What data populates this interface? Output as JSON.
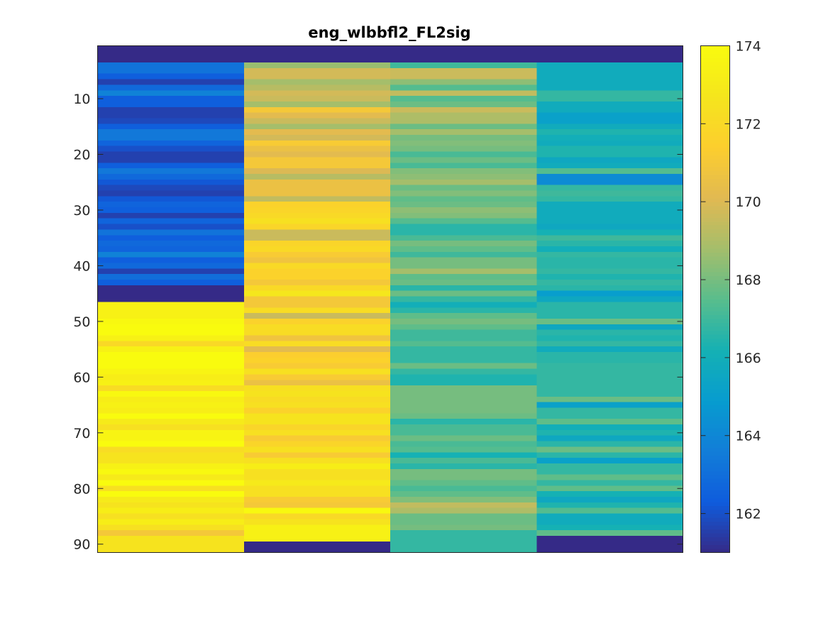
{
  "chart_data": {
    "type": "heatmap",
    "title": "eng_wlbbfl2_FL2sig",
    "xlabel": "",
    "ylabel": "",
    "colormap": "parula",
    "clim": [
      161,
      174
    ],
    "colorbar": {
      "position": "right",
      "ticks": [
        162,
        164,
        166,
        168,
        170,
        172,
        174
      ],
      "tick_labels": [
        "162",
        "164",
        "166",
        "168",
        "170",
        "172",
        "174"
      ]
    },
    "y_axis": {
      "range": [
        0.5,
        91.5
      ],
      "direction": "reverse",
      "ticks": [
        10,
        20,
        30,
        40,
        50,
        60,
        70,
        80,
        90
      ],
      "tick_labels": [
        "10",
        "20",
        "30",
        "40",
        "50",
        "60",
        "70",
        "80",
        "90"
      ]
    },
    "x_axis": {
      "columns": 4,
      "ticks": []
    },
    "rows": 91,
    "columns": [
      [
        161.0,
        161.0,
        161.0,
        163.2,
        163.2,
        162.4,
        161.6,
        162.8,
        163.8,
        162.4,
        162.4,
        161.6,
        161.6,
        161.8,
        162.4,
        163.4,
        163.4,
        162.6,
        162.0,
        161.6,
        161.6,
        162.4,
        163.4,
        162.8,
        162.2,
        161.8,
        161.6,
        162.2,
        162.6,
        162.4,
        161.6,
        162.6,
        162.0,
        163.2,
        162.4,
        162.8,
        162.6,
        163.8,
        162.4,
        162.8,
        161.6,
        163.0,
        162.4,
        161.0,
        161.0,
        161.0,
        173.4,
        173.4,
        173.4,
        173.8,
        174.0,
        174.0,
        173.4,
        172.0,
        173.4,
        174.0,
        174.0,
        174.0,
        173.6,
        173.2,
        173.4,
        172.2,
        173.8,
        173.2,
        173.4,
        173.2,
        174.0,
        173.0,
        172.4,
        173.6,
        173.6,
        174.0,
        172.2,
        172.6,
        172.6,
        173.4,
        173.8,
        173.0,
        174.0,
        172.4,
        174.0,
        173.0,
        172.6,
        173.2,
        172.4,
        173.2,
        172.4,
        171.0,
        172.6,
        172.6,
        172.6
      ],
      [
        161.0,
        161.0,
        161.0,
        168.6,
        169.8,
        169.8,
        168.8,
        169.2,
        169.8,
        169.6,
        168.8,
        171.0,
        170.2,
        169.6,
        168.8,
        170.2,
        169.8,
        171.2,
        170.6,
        170.2,
        171.0,
        171.0,
        170.0,
        169.2,
        170.6,
        170.6,
        170.6,
        169.4,
        171.6,
        171.8,
        172.0,
        172.4,
        171.8,
        169.6,
        169.6,
        171.8,
        172.0,
        171.2,
        170.8,
        172.0,
        171.6,
        171.6,
        171.0,
        172.0,
        172.8,
        171.0,
        171.0,
        172.2,
        169.6,
        171.6,
        172.2,
        172.2,
        170.8,
        172.2,
        170.2,
        171.4,
        171.6,
        171.2,
        172.4,
        171.2,
        170.6,
        172.4,
        172.6,
        172.2,
        172.4,
        171.6,
        172.6,
        172.6,
        171.8,
        172.4,
        171.2,
        171.8,
        172.4,
        171.2,
        172.4,
        173.2,
        172.4,
        172.4,
        173.0,
        172.4,
        172.4,
        171.2,
        171.0,
        173.8,
        172.0,
        172.6,
        173.4,
        173.4,
        173.4,
        161.0,
        161.0
      ],
      [
        161.0,
        161.0,
        161.0,
        167.0,
        169.6,
        169.6,
        168.4,
        167.4,
        169.4,
        167.4,
        167.8,
        169.6,
        169.0,
        169.0,
        167.8,
        168.8,
        168.0,
        168.2,
        168.0,
        167.2,
        167.8,
        167.2,
        168.2,
        168.4,
        168.8,
        167.8,
        168.2,
        167.6,
        167.8,
        168.4,
        168.2,
        167.4,
        166.6,
        166.6,
        167.2,
        168.0,
        167.6,
        167.0,
        168.0,
        168.0,
        168.8,
        167.6,
        167.8,
        166.6,
        167.8,
        166.8,
        166.0,
        166.6,
        167.6,
        168.0,
        167.6,
        167.0,
        167.0,
        167.4,
        166.8,
        166.8,
        166.8,
        167.8,
        166.8,
        166.4,
        166.4,
        168.0,
        168.0,
        168.0,
        168.0,
        168.0,
        167.8,
        166.6,
        167.2,
        167.2,
        167.8,
        167.2,
        167.4,
        166.2,
        167.2,
        166.6,
        168.0,
        168.0,
        167.6,
        167.2,
        167.6,
        168.2,
        169.4,
        169.0,
        167.8,
        167.8,
        168.0,
        166.8,
        166.8,
        166.8,
        166.8
      ],
      [
        161.0,
        161.0,
        161.0,
        165.8,
        165.8,
        165.8,
        165.8,
        165.8,
        166.8,
        166.8,
        165.8,
        165.8,
        165.2,
        165.2,
        165.8,
        166.4,
        166.0,
        165.8,
        166.4,
        166.4,
        165.6,
        165.8,
        167.4,
        164.2,
        164.2,
        166.8,
        167.0,
        166.8,
        165.8,
        165.8,
        165.8,
        165.8,
        165.6,
        166.2,
        167.0,
        166.6,
        166.0,
        166.8,
        166.6,
        166.6,
        166.8,
        166.4,
        166.8,
        166.6,
        165.0,
        165.6,
        166.6,
        166.6,
        166.6,
        167.8,
        165.6,
        166.6,
        166.4,
        166.8,
        165.8,
        166.6,
        166.6,
        166.8,
        166.8,
        166.8,
        166.8,
        166.8,
        166.8,
        167.8,
        165.2,
        166.8,
        166.8,
        167.6,
        166.0,
        166.4,
        165.6,
        166.6,
        167.8,
        166.6,
        165.2,
        166.8,
        166.8,
        167.6,
        166.8,
        167.6,
        166.2,
        165.6,
        166.4,
        167.4,
        165.8,
        165.8,
        166.2,
        167.6,
        161.0,
        161.0,
        161.0
      ]
    ]
  }
}
